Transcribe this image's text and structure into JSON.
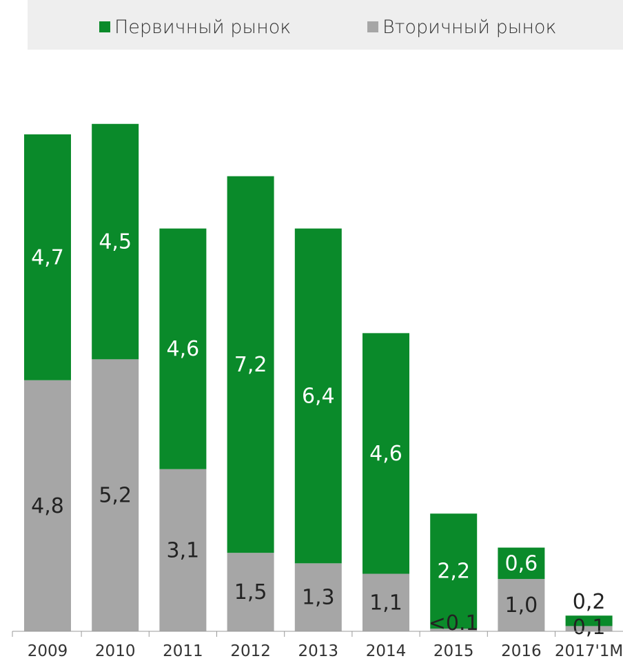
{
  "chart_data": {
    "type": "bar",
    "stacked": true,
    "categories": [
      "2009",
      "2010",
      "2011",
      "2012",
      "2013",
      "2014",
      "2015",
      "2016",
      "2017'1M"
    ],
    "series": [
      {
        "name": "Вторичный рынок",
        "color": "#a6a6a6",
        "values": [
          4.8,
          5.2,
          3.1,
          1.5,
          1.3,
          1.1,
          0.05,
          1.0,
          0.1
        ],
        "labels": [
          "4,8",
          "5,2",
          "3,1",
          "1,5",
          "1,3",
          "1,1",
          "<0.1",
          "1,0",
          "0,1"
        ]
      },
      {
        "name": "Первичный рынок",
        "color": "#0a8a2a",
        "values": [
          4.7,
          4.5,
          4.6,
          7.2,
          6.4,
          4.6,
          2.2,
          0.6,
          0.2
        ],
        "labels": [
          "4,7",
          "4,5",
          "4,6",
          "7,2",
          "6,4",
          "4,6",
          "2,2",
          "0,6",
          "0,2"
        ]
      }
    ],
    "legend_position": "top",
    "grid": false,
    "ylim": [
      0,
      10
    ]
  }
}
